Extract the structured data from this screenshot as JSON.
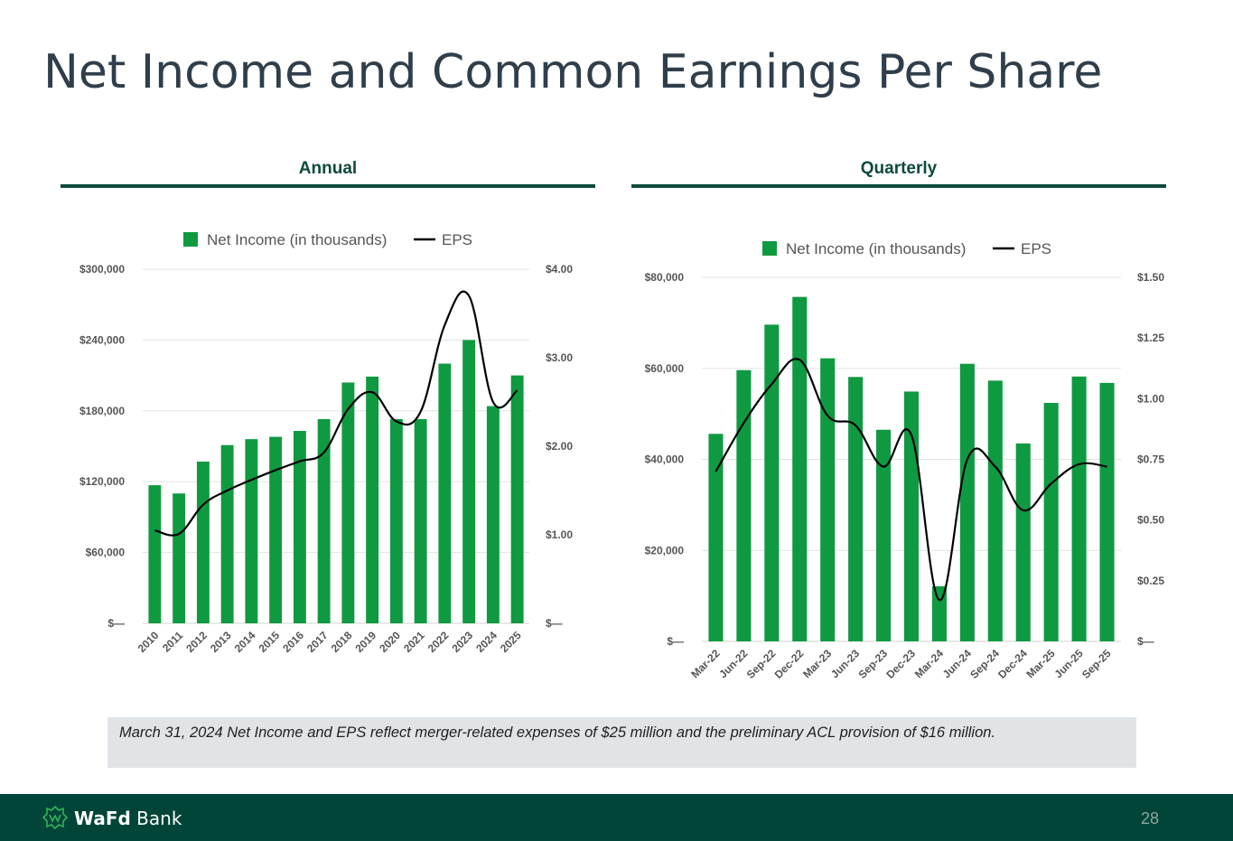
{
  "page": {
    "title": "Net Income and Common Earnings Per Share",
    "note": "March 31, 2024 Net Income and EPS reflect merger-related expenses of $25 million and the preliminary ACL provision of $16 million.",
    "page_number": "28",
    "logo": {
      "bold": "WaFd",
      "regular": " Bank"
    }
  },
  "colors": {
    "bar": "#0f9a41",
    "line": "#000000",
    "grid": "#e3e3e3",
    "axis_text": "#555555",
    "brand": "#0d4a3b"
  },
  "chart_data": [
    {
      "type": "bar",
      "section_title": "Annual",
      "categories": [
        "2010",
        "2011",
        "2012",
        "2013",
        "2014",
        "2015",
        "2016",
        "2017",
        "2018",
        "2019",
        "2020",
        "2021",
        "2022",
        "2023",
        "2024",
        "2025"
      ],
      "series": [
        {
          "name": "Net Income (in thousands)",
          "type": "bar",
          "axis": "left",
          "values": [
            117000,
            110000,
            137000,
            151000,
            156000,
            158000,
            163000,
            173000,
            204000,
            209000,
            173000,
            173000,
            220000,
            240000,
            184000,
            210000
          ]
        },
        {
          "name": "EPS",
          "type": "line",
          "axis": "right",
          "values": [
            1.05,
            1.01,
            1.34,
            1.5,
            1.62,
            1.73,
            1.83,
            1.93,
            2.42,
            2.61,
            2.28,
            2.39,
            3.37,
            3.7,
            2.5,
            2.63
          ]
        }
      ],
      "y_left": {
        "min": 0,
        "max": 300000,
        "ticks": [
          0,
          60000,
          120000,
          180000,
          240000,
          300000
        ],
        "tick_labels": [
          "$—",
          "$60,000",
          "$120,000",
          "$180,000",
          "$240,000",
          "$300,000"
        ]
      },
      "y_right": {
        "min": 0,
        "max": 4,
        "ticks": [
          0,
          1,
          2,
          3,
          4
        ],
        "tick_labels": [
          "$—",
          "$1.00",
          "$2.00",
          "$3.00",
          "$4.00"
        ]
      },
      "legend": {
        "bar_label": "Net Income (in thousands)",
        "line_label": "EPS",
        "position": "top-center"
      },
      "grid": true
    },
    {
      "type": "bar",
      "section_title": "Quarterly",
      "categories": [
        "Mar-22",
        "Jun-22",
        "Sep-22",
        "Dec-22",
        "Mar-23",
        "Jun-23",
        "Sep-23",
        "Dec-23",
        "Mar-24",
        "Jun-24",
        "Sep-24",
        "Dec-24",
        "Mar-25",
        "Jun-25",
        "Sep-25"
      ],
      "series": [
        {
          "name": "Net Income (in thousands)",
          "type": "bar",
          "axis": "left",
          "values": [
            45600,
            59600,
            69600,
            75700,
            62200,
            58100,
            46500,
            54900,
            12100,
            61000,
            57300,
            43500,
            52400,
            58200,
            56800
          ]
        },
        {
          "name": "EPS",
          "type": "line",
          "axis": "right",
          "values": [
            0.7,
            0.9,
            1.06,
            1.16,
            0.93,
            0.89,
            0.72,
            0.85,
            0.17,
            0.75,
            0.72,
            0.54,
            0.65,
            0.73,
            0.72
          ]
        }
      ],
      "y_left": {
        "min": 0,
        "max": 80000,
        "ticks": [
          0,
          20000,
          40000,
          60000,
          80000
        ],
        "tick_labels": [
          "$—",
          "$20,000",
          "$40,000",
          "$60,000",
          "$80,000"
        ]
      },
      "y_right": {
        "min": 0,
        "max": 1.5,
        "ticks": [
          0,
          0.25,
          0.5,
          0.75,
          1.0,
          1.25,
          1.5
        ],
        "tick_labels": [
          "$—",
          "$0.25",
          "$0.50",
          "$0.75",
          "$1.00",
          "$1.25",
          "$1.50"
        ]
      },
      "legend": {
        "bar_label": "Net Income (in thousands)",
        "line_label": "EPS",
        "position": "top-center"
      },
      "grid": true
    }
  ]
}
